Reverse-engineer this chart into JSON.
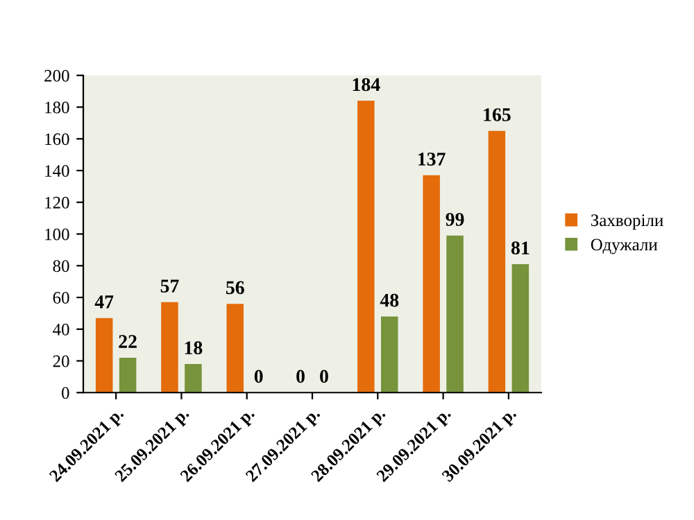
{
  "chart_data": {
    "type": "bar",
    "categories": [
      "24.09.2021 р.",
      "25.09.2021 р.",
      "26.09.2021 р.",
      "27.09.2021 р.",
      "28.09.2021 р.",
      "29.09.2021 р.",
      "30.09.2021 р."
    ],
    "series": [
      {
        "name": "Захворіли",
        "color": "#e46c0a",
        "values": [
          47,
          57,
          56,
          0,
          184,
          137,
          165
        ]
      },
      {
        "name": "Одужали",
        "color": "#77933c",
        "values": [
          22,
          18,
          0,
          0,
          48,
          99,
          81
        ]
      }
    ],
    "ylim": [
      0,
      200
    ],
    "yticks": [
      0,
      20,
      40,
      60,
      80,
      100,
      120,
      140,
      160,
      180,
      200
    ],
    "data_labels": true,
    "legend": "right",
    "grid": false
  }
}
